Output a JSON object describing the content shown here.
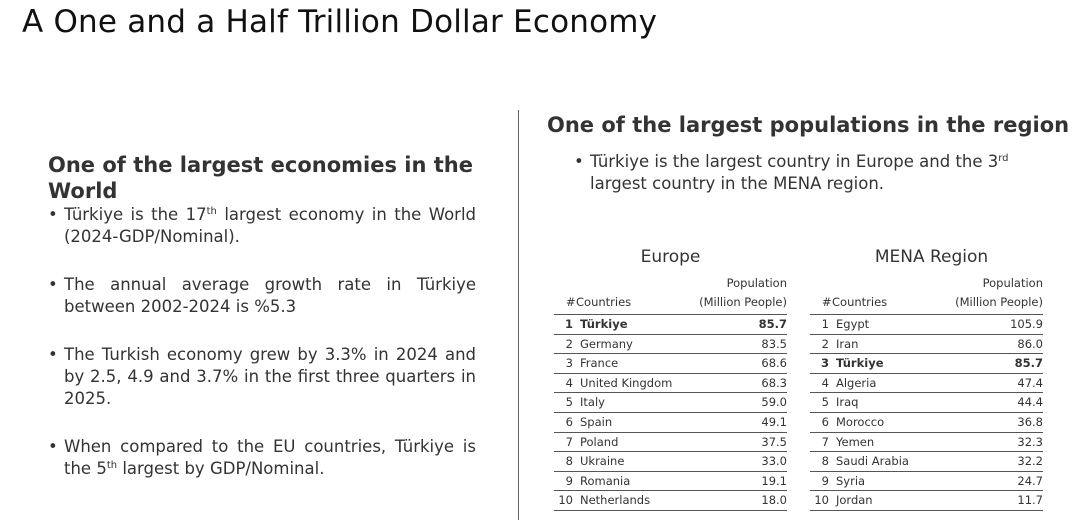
{
  "title": "A One and a Half Trillion Dollar Economy",
  "left": {
    "heading": "One of the largest economies in the World",
    "bullets": [
      {
        "pre": "Türkiye is the 17",
        "sup": "th",
        "post": " largest economy in the World (2024-GDP/Nominal)."
      },
      {
        "pre": "The annual average growth rate in Türkiye between 2002-2024 is %5.3",
        "sup": "",
        "post": ""
      },
      {
        "pre": "The Turkish economy grew by 3.3% in 2024 and by 2.5, 4.9 and 3.7% in the first three quarters in 2025.",
        "sup": "",
        "post": ""
      },
      {
        "pre": "When compared to the EU countries, Türkiye is the 5",
        "sup": "th",
        "post": " largest by GDP/Nominal."
      }
    ]
  },
  "right": {
    "heading": "One of the largest populations in the region",
    "bullet": {
      "pre": "Türkiye is the largest country in Europe and the 3",
      "sup": "rd",
      "post": " largest country in the MENA region."
    }
  },
  "tables": {
    "europe": {
      "title": "Europe",
      "col_pop": "Population",
      "col_num": "#",
      "col_country": "Countries",
      "col_unit": "(Million People)",
      "rows": [
        {
          "rank": "1",
          "country": "Türkiye",
          "value": "85.7",
          "highlight": true
        },
        {
          "rank": "2",
          "country": "Germany",
          "value": "83.5",
          "highlight": false
        },
        {
          "rank": "3",
          "country": "France",
          "value": "68.6",
          "highlight": false
        },
        {
          "rank": "4",
          "country": "United Kingdom",
          "value": "68.3",
          "highlight": false
        },
        {
          "rank": "5",
          "country": "Italy",
          "value": "59.0",
          "highlight": false
        },
        {
          "rank": "6",
          "country": "Spain",
          "value": "49.1",
          "highlight": false
        },
        {
          "rank": "7",
          "country": "Poland",
          "value": "37.5",
          "highlight": false
        },
        {
          "rank": "8",
          "country": "Ukraine",
          "value": "33.0",
          "highlight": false
        },
        {
          "rank": "9",
          "country": "Romania",
          "value": "19.1",
          "highlight": false
        },
        {
          "rank": "10",
          "country": "Netherlands",
          "value": "18.0",
          "highlight": false
        }
      ]
    },
    "mena": {
      "title": "MENA Region",
      "col_pop": "Population",
      "col_num": "#",
      "col_country": "Countries",
      "col_unit": "(Million People)",
      "rows": [
        {
          "rank": "1",
          "country": "Egypt",
          "value": "105.9",
          "highlight": false
        },
        {
          "rank": "2",
          "country": "Iran",
          "value": "86.0",
          "highlight": false
        },
        {
          "rank": "3",
          "country": "Türkiye",
          "value": "85.7",
          "highlight": true
        },
        {
          "rank": "4",
          "country": "Algeria",
          "value": "47.4",
          "highlight": false
        },
        {
          "rank": "5",
          "country": "Iraq",
          "value": "44.4",
          "highlight": false
        },
        {
          "rank": "6",
          "country": "Morocco",
          "value": "36.8",
          "highlight": false
        },
        {
          "rank": "7",
          "country": "Yemen",
          "value": "32.3",
          "highlight": false
        },
        {
          "rank": "8",
          "country": "Saudi Arabia",
          "value": "32.2",
          "highlight": false
        },
        {
          "rank": "9",
          "country": "Syria",
          "value": "24.7",
          "highlight": false
        },
        {
          "rank": "10",
          "country": "Jordan",
          "value": "11.7",
          "highlight": false
        }
      ]
    }
  }
}
